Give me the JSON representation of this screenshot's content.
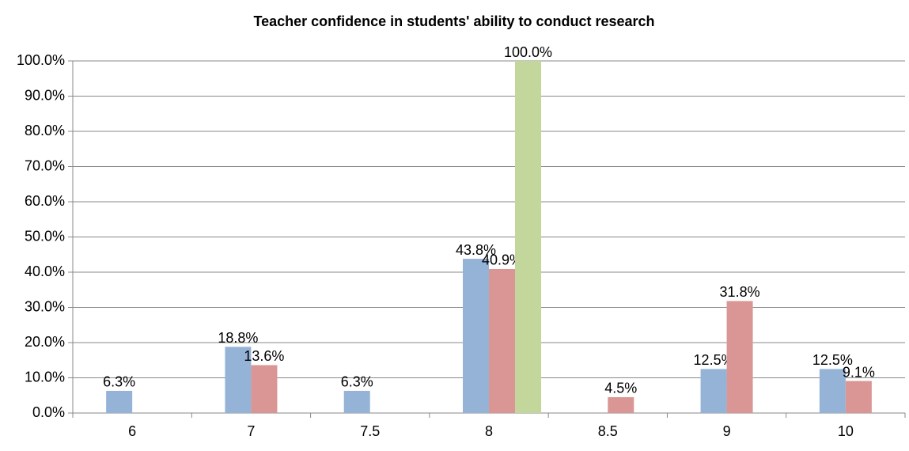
{
  "chart_data": {
    "type": "bar",
    "title": "Teacher confidence in students' ability to conduct research",
    "categories": [
      "6",
      "7",
      "7.5",
      "8",
      "8.5",
      "9",
      "10"
    ],
    "series": [
      {
        "color": "#95b3d7",
        "values": [
          6.3,
          18.8,
          6.3,
          43.8,
          null,
          12.5,
          12.5
        ],
        "value_labels": [
          "6.3%",
          "18.8%",
          "6.3%",
          "43.8%",
          null,
          "12.5%",
          "12.5%"
        ]
      },
      {
        "color": "#d99694",
        "values": [
          null,
          13.6,
          null,
          40.9,
          4.5,
          31.8,
          9.1
        ],
        "value_labels": [
          null,
          "13.6%",
          null,
          "40.9%",
          "4.5%",
          "31.8%",
          "9.1%"
        ]
      },
      {
        "color": "#c3d69b",
        "values": [
          null,
          null,
          null,
          100,
          null,
          null,
          null
        ],
        "value_labels": [
          null,
          null,
          null,
          "100.0%",
          null,
          null,
          null
        ]
      }
    ],
    "ylim": [
      0,
      100
    ],
    "yticks": [
      {
        "value": 0,
        "label": "0.0%"
      },
      {
        "value": 10,
        "label": "10.0%"
      },
      {
        "value": 20,
        "label": "20.0%"
      },
      {
        "value": 30,
        "label": "30.0%"
      },
      {
        "value": 40,
        "label": "40.0%"
      },
      {
        "value": 50,
        "label": "50.0%"
      },
      {
        "value": 60,
        "label": "60.0%"
      },
      {
        "value": 70,
        "label": "70.0%"
      },
      {
        "value": 80,
        "label": "80.0%"
      },
      {
        "value": 90,
        "label": "90.0%"
      },
      {
        "value": 100,
        "label": "100.0%"
      }
    ],
    "grid": true
  }
}
